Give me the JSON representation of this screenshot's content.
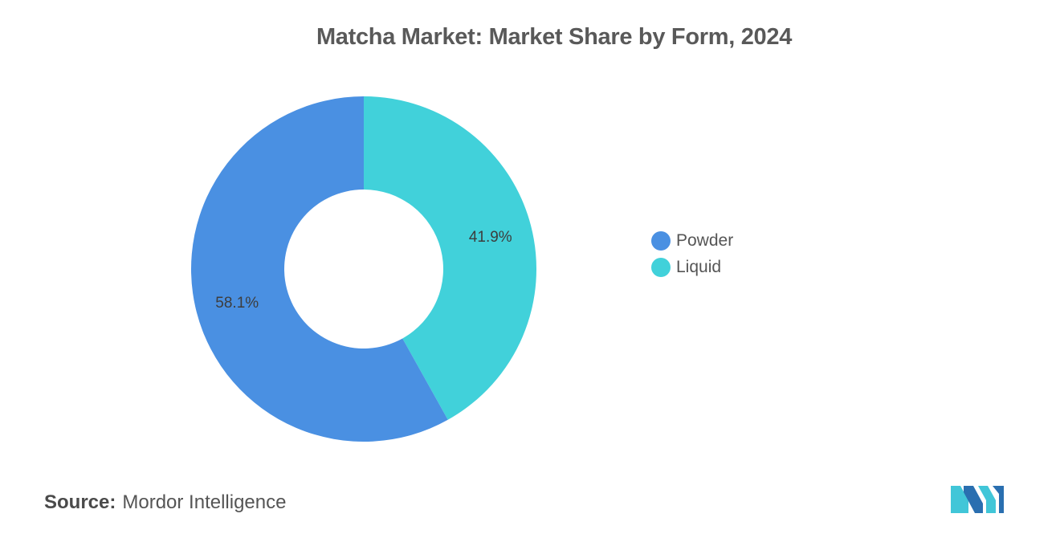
{
  "title": "Matcha Market: Market Share by Form, 2024",
  "source": {
    "label": "Source:",
    "value": "Mordor Intelligence"
  },
  "colors": {
    "powder": "#4a90e2",
    "liquid": "#41d1da",
    "logo_dark": "#2a6fb0",
    "logo_light": "#41c6d8"
  },
  "logo_icon": "mordor-intelligence-logo-icon",
  "chart_data": {
    "type": "pie",
    "variant": "donut",
    "title": "Matcha Market: Market Share by Form, 2024",
    "legend_position": "right",
    "slices": [
      {
        "label": "Powder",
        "value": 58.1,
        "data_label": "58.1%",
        "color": "#4a90e2"
      },
      {
        "label": "Liquid",
        "value": 41.9,
        "data_label": "41.9%",
        "color": "#41d1da"
      }
    ]
  }
}
